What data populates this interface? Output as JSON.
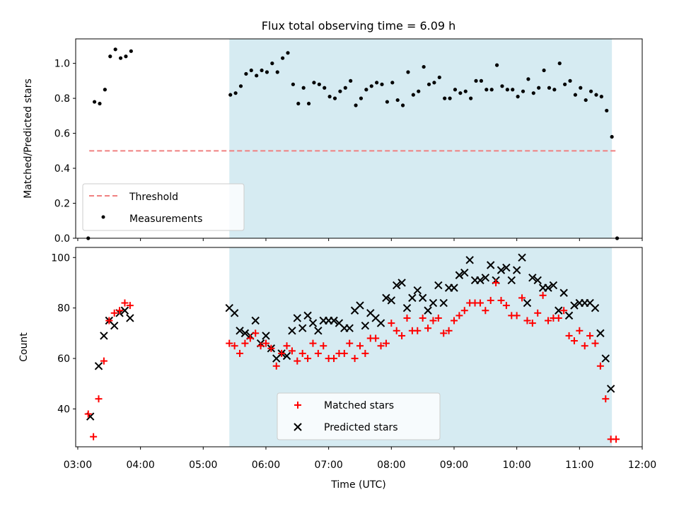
{
  "title": "Flux total observing time = 6.09 h",
  "colors": {
    "shade": "#add8e6",
    "threshold": "#f08080",
    "matched": "#ff0000",
    "predicted": "#000000",
    "measurements": "#000000"
  },
  "chart_data": [
    {
      "type": "scatter",
      "ylabel": "Matched/Predicted stars",
      "ylim": [
        0,
        1.14
      ],
      "yticks": [
        "0.0",
        "0.2",
        "0.4",
        "0.6",
        "0.8",
        "1.0"
      ],
      "xlim": [
        "02:58",
        "12:00"
      ],
      "shaded_span": [
        "05:25",
        "11:31"
      ],
      "threshold": {
        "name": "Threshold",
        "value": 0.5,
        "x_range": [
          "03:11",
          "11:36"
        ]
      },
      "legend_position": "lower-left",
      "legend": [
        "Threshold",
        "Measurements"
      ],
      "series": [
        {
          "name": "Measurements",
          "points": [
            [
              "03:10",
              0.0
            ],
            [
              "03:16",
              0.78
            ],
            [
              "03:21",
              0.77
            ],
            [
              "03:26",
              0.85
            ],
            [
              "03:31",
              1.04
            ],
            [
              "03:36",
              1.08
            ],
            [
              "03:41",
              1.03
            ],
            [
              "03:46",
              1.04
            ],
            [
              "03:51",
              1.07
            ],
            [
              "05:26",
              0.82
            ],
            [
              "05:31",
              0.83
            ],
            [
              "05:36",
              0.87
            ],
            [
              "05:41",
              0.94
            ],
            [
              "05:46",
              0.96
            ],
            [
              "05:51",
              0.93
            ],
            [
              "05:56",
              0.96
            ],
            [
              "06:01",
              0.95
            ],
            [
              "06:06",
              1.0
            ],
            [
              "06:11",
              0.95
            ],
            [
              "06:16",
              1.03
            ],
            [
              "06:21",
              1.06
            ],
            [
              "06:26",
              0.88
            ],
            [
              "06:31",
              0.77
            ],
            [
              "06:36",
              0.86
            ],
            [
              "06:41",
              0.77
            ],
            [
              "06:46",
              0.89
            ],
            [
              "06:51",
              0.88
            ],
            [
              "06:56",
              0.86
            ],
            [
              "07:01",
              0.81
            ],
            [
              "07:06",
              0.8
            ],
            [
              "07:11",
              0.84
            ],
            [
              "07:16",
              0.86
            ],
            [
              "07:21",
              0.9
            ],
            [
              "07:26",
              0.76
            ],
            [
              "07:31",
              0.8
            ],
            [
              "07:36",
              0.85
            ],
            [
              "07:41",
              0.87
            ],
            [
              "07:46",
              0.89
            ],
            [
              "07:51",
              0.88
            ],
            [
              "07:56",
              0.78
            ],
            [
              "08:01",
              0.89
            ],
            [
              "08:06",
              0.79
            ],
            [
              "08:11",
              0.76
            ],
            [
              "08:16",
              0.95
            ],
            [
              "08:21",
              0.82
            ],
            [
              "08:26",
              0.84
            ],
            [
              "08:31",
              0.98
            ],
            [
              "08:36",
              0.88
            ],
            [
              "08:41",
              0.89
            ],
            [
              "08:46",
              0.92
            ],
            [
              "08:51",
              0.8
            ],
            [
              "08:56",
              0.8
            ],
            [
              "09:01",
              0.85
            ],
            [
              "09:06",
              0.83
            ],
            [
              "09:11",
              0.84
            ],
            [
              "09:16",
              0.8
            ],
            [
              "09:21",
              0.9
            ],
            [
              "09:26",
              0.9
            ],
            [
              "09:31",
              0.85
            ],
            [
              "09:36",
              0.85
            ],
            [
              "09:41",
              0.99
            ],
            [
              "09:46",
              0.87
            ],
            [
              "09:51",
              0.85
            ],
            [
              "09:56",
              0.85
            ],
            [
              "10:01",
              0.81
            ],
            [
              "10:06",
              0.84
            ],
            [
              "10:11",
              0.91
            ],
            [
              "10:16",
              0.83
            ],
            [
              "10:21",
              0.86
            ],
            [
              "10:26",
              0.96
            ],
            [
              "10:31",
              0.86
            ],
            [
              "10:36",
              0.85
            ],
            [
              "10:41",
              1.0
            ],
            [
              "10:46",
              0.88
            ],
            [
              "10:51",
              0.9
            ],
            [
              "10:56",
              0.82
            ],
            [
              "11:01",
              0.86
            ],
            [
              "11:06",
              0.79
            ],
            [
              "11:11",
              0.84
            ],
            [
              "11:16",
              0.82
            ],
            [
              "11:21",
              0.81
            ],
            [
              "11:26",
              0.73
            ],
            [
              "11:31",
              0.58
            ],
            [
              "11:36",
              0.0
            ]
          ]
        }
      ]
    },
    {
      "type": "scatter",
      "xlabel": "Time (UTC)",
      "ylabel": "Count",
      "ylim": [
        25,
        104
      ],
      "yticks": [
        "40",
        "60",
        "80",
        "100"
      ],
      "xlim": [
        "02:58",
        "12:00"
      ],
      "xticks": [
        "03:00",
        "04:00",
        "05:00",
        "06:00",
        "07:00",
        "08:00",
        "09:00",
        "10:00",
        "11:00",
        "12:00"
      ],
      "shaded_span": [
        "05:25",
        "11:31"
      ],
      "legend_position": "lower-center",
      "legend": [
        "Matched stars",
        "Predicted stars"
      ],
      "series": [
        {
          "name": "Matched stars",
          "points": [
            [
              "03:10",
              38
            ],
            [
              "03:15",
              29
            ],
            [
              "03:20",
              44
            ],
            [
              "03:25",
              59
            ],
            [
              "03:30",
              75
            ],
            [
              "03:35",
              78
            ],
            [
              "03:40",
              79
            ],
            [
              "03:45",
              82
            ],
            [
              "03:50",
              81
            ],
            [
              "05:25",
              66
            ],
            [
              "05:30",
              65
            ],
            [
              "05:35",
              62
            ],
            [
              "05:40",
              66
            ],
            [
              "05:45",
              68
            ],
            [
              "05:50",
              70
            ],
            [
              "05:55",
              65
            ],
            [
              "06:00",
              66
            ],
            [
              "06:05",
              64
            ],
            [
              "06:10",
              57
            ],
            [
              "06:15",
              62
            ],
            [
              "06:20",
              65
            ],
            [
              "06:25",
              63
            ],
            [
              "06:30",
              59
            ],
            [
              "06:35",
              62
            ],
            [
              "06:40",
              60
            ],
            [
              "06:45",
              66
            ],
            [
              "06:50",
              62
            ],
            [
              "06:55",
              65
            ],
            [
              "07:00",
              60
            ],
            [
              "07:05",
              60
            ],
            [
              "07:10",
              62
            ],
            [
              "07:15",
              62
            ],
            [
              "07:20",
              66
            ],
            [
              "07:25",
              60
            ],
            [
              "07:30",
              65
            ],
            [
              "07:35",
              62
            ],
            [
              "07:40",
              68
            ],
            [
              "07:45",
              68
            ],
            [
              "07:50",
              65
            ],
            [
              "07:55",
              66
            ],
            [
              "08:00",
              74
            ],
            [
              "08:05",
              71
            ],
            [
              "08:10",
              69
            ],
            [
              "08:15",
              76
            ],
            [
              "08:20",
              71
            ],
            [
              "08:25",
              71
            ],
            [
              "08:30",
              76
            ],
            [
              "08:35",
              72
            ],
            [
              "08:40",
              75
            ],
            [
              "08:45",
              76
            ],
            [
              "08:50",
              70
            ],
            [
              "08:55",
              71
            ],
            [
              "09:00",
              75
            ],
            [
              "09:05",
              77
            ],
            [
              "09:10",
              79
            ],
            [
              "09:15",
              82
            ],
            [
              "09:20",
              82
            ],
            [
              "09:25",
              82
            ],
            [
              "09:30",
              79
            ],
            [
              "09:35",
              83
            ],
            [
              "09:40",
              90
            ],
            [
              "09:45",
              83
            ],
            [
              "09:50",
              81
            ],
            [
              "09:55",
              77
            ],
            [
              "10:00",
              77
            ],
            [
              "10:05",
              84
            ],
            [
              "10:10",
              75
            ],
            [
              "10:15",
              74
            ],
            [
              "10:20",
              78
            ],
            [
              "10:25",
              85
            ],
            [
              "10:30",
              75
            ],
            [
              "10:35",
              76
            ],
            [
              "10:40",
              76
            ],
            [
              "10:45",
              79
            ],
            [
              "10:50",
              69
            ],
            [
              "10:55",
              67
            ],
            [
              "11:00",
              71
            ],
            [
              "11:05",
              65
            ],
            [
              "11:10",
              69
            ],
            [
              "11:15",
              66
            ],
            [
              "11:20",
              57
            ],
            [
              "11:25",
              44
            ],
            [
              "11:30",
              28
            ],
            [
              "11:35",
              28
            ]
          ]
        },
        {
          "name": "Predicted stars",
          "points": [
            [
              "03:12",
              37
            ],
            [
              "03:20",
              57
            ],
            [
              "03:25",
              69
            ],
            [
              "03:30",
              75
            ],
            [
              "03:35",
              73
            ],
            [
              "03:40",
              78
            ],
            [
              "03:45",
              79
            ],
            [
              "03:50",
              76
            ],
            [
              "05:25",
              80
            ],
            [
              "05:30",
              78
            ],
            [
              "05:35",
              71
            ],
            [
              "05:40",
              70
            ],
            [
              "05:45",
              69
            ],
            [
              "05:50",
              75
            ],
            [
              "05:55",
              66
            ],
            [
              "06:00",
              69
            ],
            [
              "06:05",
              64
            ],
            [
              "06:10",
              60
            ],
            [
              "06:15",
              62
            ],
            [
              "06:20",
              61
            ],
            [
              "06:25",
              71
            ],
            [
              "06:30",
              76
            ],
            [
              "06:35",
              72
            ],
            [
              "06:40",
              77
            ],
            [
              "06:45",
              74
            ],
            [
              "06:50",
              71
            ],
            [
              "06:55",
              75
            ],
            [
              "07:00",
              75
            ],
            [
              "07:05",
              75
            ],
            [
              "07:10",
              74
            ],
            [
              "07:15",
              72
            ],
            [
              "07:20",
              72
            ],
            [
              "07:25",
              79
            ],
            [
              "07:30",
              81
            ],
            [
              "07:35",
              73
            ],
            [
              "07:40",
              78
            ],
            [
              "07:45",
              76
            ],
            [
              "07:50",
              74
            ],
            [
              "07:55",
              84
            ],
            [
              "08:00",
              83
            ],
            [
              "08:05",
              89
            ],
            [
              "08:10",
              90
            ],
            [
              "08:15",
              80
            ],
            [
              "08:20",
              84
            ],
            [
              "08:25",
              87
            ],
            [
              "08:30",
              84
            ],
            [
              "08:35",
              79
            ],
            [
              "08:40",
              82
            ],
            [
              "08:45",
              89
            ],
            [
              "08:50",
              82
            ],
            [
              "08:55",
              88
            ],
            [
              "09:00",
              88
            ],
            [
              "09:05",
              93
            ],
            [
              "09:10",
              94
            ],
            [
              "09:15",
              99
            ],
            [
              "09:20",
              91
            ],
            [
              "09:25",
              91
            ],
            [
              "09:30",
              92
            ],
            [
              "09:35",
              97
            ],
            [
              "09:40",
              91
            ],
            [
              "09:45",
              95
            ],
            [
              "09:50",
              96
            ],
            [
              "09:55",
              91
            ],
            [
              "10:00",
              95
            ],
            [
              "10:05",
              100
            ],
            [
              "10:10",
              82
            ],
            [
              "10:15",
              92
            ],
            [
              "10:20",
              91
            ],
            [
              "10:25",
              88
            ],
            [
              "10:30",
              88
            ],
            [
              "10:35",
              89
            ],
            [
              "10:40",
              79
            ],
            [
              "10:45",
              86
            ],
            [
              "10:50",
              77
            ],
            [
              "10:55",
              81
            ],
            [
              "11:00",
              82
            ],
            [
              "11:05",
              82
            ],
            [
              "11:10",
              82
            ],
            [
              "11:15",
              80
            ],
            [
              "11:20",
              70
            ],
            [
              "11:25",
              60
            ],
            [
              "11:30",
              48
            ]
          ]
        }
      ]
    }
  ]
}
